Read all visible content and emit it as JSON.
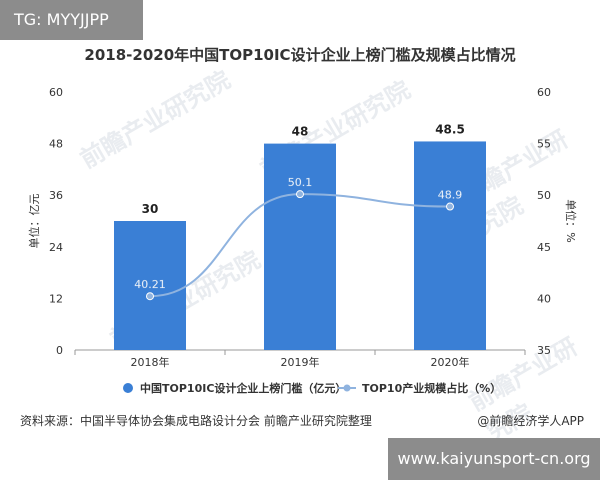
{
  "overlay": {
    "tag_text": "TG: MYYJJPP",
    "site_text": "www.kaiyunsport-cn.org"
  },
  "chart_data": {
    "type": "bar",
    "title": "2018-2020年中国TOP10IC设计企业上榜门槛及规模占比情况",
    "categories": [
      "2018年",
      "2019年",
      "2020年"
    ],
    "series": [
      {
        "name": "中国TOP10IC设计企业上榜门槛（亿元）",
        "type": "bar",
        "axis": "left",
        "values": [
          30,
          48,
          48.5
        ],
        "color": "#3a7fd5"
      },
      {
        "name": "TOP10产业规模占比（%）",
        "type": "line",
        "axis": "right",
        "values": [
          40.21,
          50.1,
          48.9
        ],
        "color": "#8fb3df"
      }
    ],
    "ylabel": "单位：亿元",
    "y2label": "单位：%",
    "ylim": [
      0,
      60
    ],
    "y2lim": [
      35,
      60
    ],
    "yticks": [
      "0",
      "12",
      "24",
      "36",
      "48",
      "60"
    ],
    "y2ticks": [
      "35",
      "40",
      "45",
      "50",
      "55",
      "60"
    ],
    "bar_labels": [
      "30",
      "48",
      "48.5"
    ],
    "line_labels": [
      "40.21",
      "50.1",
      "48.9"
    ],
    "grid": false,
    "legend_position": "bottom"
  },
  "footer": {
    "source": "资料来源：中国半导体协会集成电路设计分会 前瞻产业研究院整理",
    "credit": "@前瞻经济学人APP"
  },
  "watermark": "前瞻产业研究院"
}
